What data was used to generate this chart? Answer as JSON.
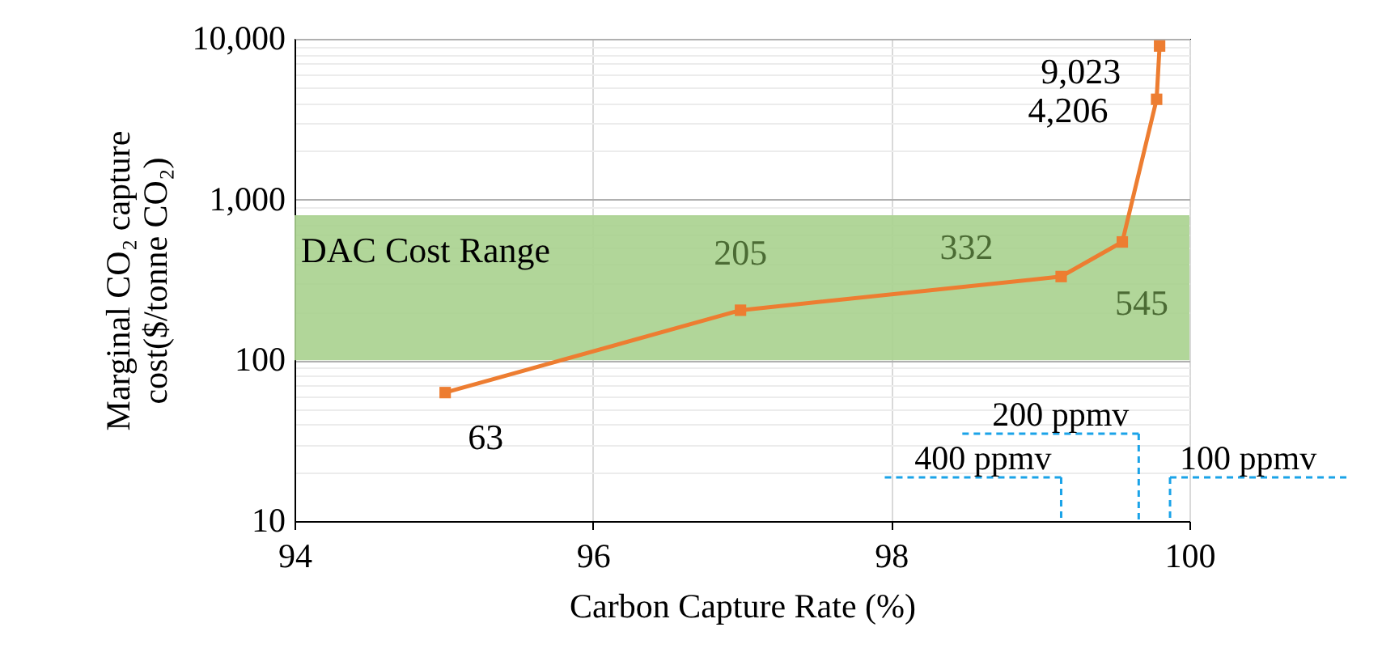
{
  "chart_data": {
    "type": "line",
    "xlabel": "Carbon Capture Rate (%)",
    "ylabel": "Marginal CO₂ capture cost($/tonne CO₂)",
    "x": [
      95.01,
      96.99,
      99.14,
      99.55,
      99.78,
      99.8
    ],
    "values": [
      63,
      205,
      332,
      545,
      4206,
      9023
    ],
    "value_labels": [
      "63",
      "205",
      "332",
      "545",
      "4,206",
      "9,023"
    ],
    "color": "#ed7d31",
    "marker": "square",
    "log": "y",
    "grid": true,
    "xlim": [
      94,
      100
    ],
    "xticks": [
      94,
      96,
      98,
      100
    ],
    "ylim": [
      10,
      10000
    ],
    "yticks": [
      10,
      {
        "value": 20,
        "label": null
      },
      {
        "value": 30,
        "label": null
      },
      {
        "value": 40,
        "label": null
      },
      {
        "value": 50,
        "label": null
      },
      {
        "value": 60,
        "label": null
      },
      {
        "value": 70,
        "label": null
      },
      {
        "value": 80,
        "label": null
      },
      {
        "value": 90,
        "label": null
      },
      100,
      {
        "value": 200,
        "label": null
      },
      {
        "value": 300,
        "label": null
      },
      {
        "value": 400,
        "label": null
      },
      {
        "value": 500,
        "label": null
      },
      {
        "value": 600,
        "label": null
      },
      {
        "value": 700,
        "label": null
      },
      {
        "value": 800,
        "label": null
      },
      {
        "value": 900,
        "label": null
      },
      {
        "value": 1000,
        "label": "1,000"
      },
      {
        "value": 2000,
        "label": null
      },
      {
        "value": 3000,
        "label": null
      },
      {
        "value": 4000,
        "label": null
      },
      {
        "value": 5000,
        "label": null
      },
      {
        "value": 6000,
        "label": null
      },
      {
        "value": 7000,
        "label": null
      },
      {
        "value": 8000,
        "label": null
      },
      {
        "value": 9000,
        "label": null
      },
      {
        "value": 10000,
        "label": "10,000"
      }
    ],
    "bands": [
      {
        "axis": "y",
        "from": 100,
        "to": 800,
        "label": "DAC Cost Range",
        "color": "#a9d18e"
      }
    ],
    "ref_lines": [
      {
        "axis": "x",
        "value": 99.14,
        "label": "400 ppmv",
        "color": "#1aa3e8",
        "line_style": "dashed"
      },
      {
        "axis": "x",
        "value": 99.66,
        "label": "200 ppmv",
        "color": "#1aa3e8",
        "line_style": "dashed"
      },
      {
        "axis": "x",
        "value": 99.87,
        "label": "100 ppmv",
        "color": "#1aa3e8",
        "line_style": "dashed"
      }
    ]
  }
}
